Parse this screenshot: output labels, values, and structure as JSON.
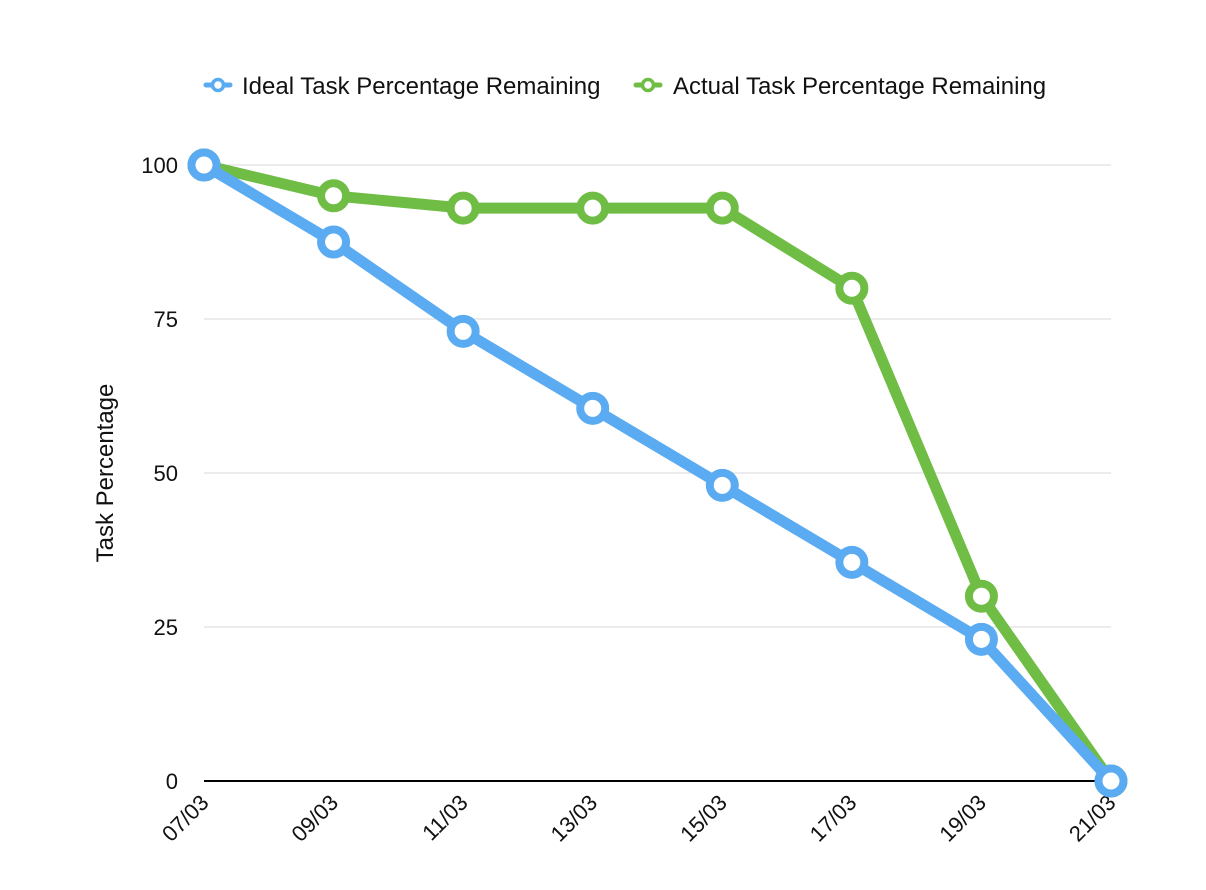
{
  "chart_data": {
    "type": "line",
    "title": "",
    "xlabel": "",
    "ylabel": "Task Percentage",
    "categories": [
      "07/03",
      "09/03",
      "11/03",
      "13/03",
      "15/03",
      "17/03",
      "19/03",
      "21/03"
    ],
    "y_ticks": [
      0,
      25,
      50,
      75,
      100
    ],
    "ylim": [
      0,
      100
    ],
    "grid": true,
    "legend_position": "top-center",
    "series": [
      {
        "name": "Ideal Task Percentage Remaining",
        "color": "#5aabf2",
        "values": [
          100,
          87.5,
          73,
          60.5,
          48,
          35.5,
          23,
          0
        ]
      },
      {
        "name": "Actual Task Percentage Remaining",
        "color": "#6fbd45",
        "values": [
          100,
          95,
          93,
          93,
          93,
          80,
          30,
          0
        ]
      }
    ]
  }
}
